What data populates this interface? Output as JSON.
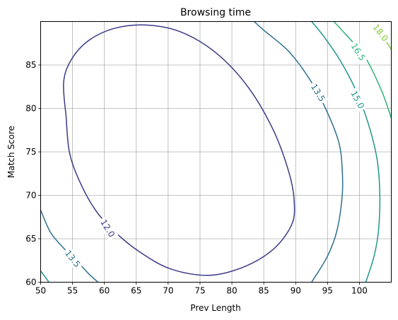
{
  "chart_data": {
    "type": "contour",
    "title": "Browsing time",
    "xlabel": "Prev Length",
    "ylabel": "Match Score",
    "xlim": [
      50,
      105
    ],
    "ylim": [
      60,
      90
    ],
    "x_ticks": [
      50,
      55,
      60,
      65,
      70,
      75,
      80,
      85,
      90,
      95,
      100
    ],
    "y_ticks": [
      60,
      65,
      70,
      75,
      80,
      85
    ],
    "grid": true,
    "legend": "none",
    "levels": [
      {
        "level": 12.0,
        "label": "12.0",
        "color": "#3b3a87",
        "paths": [
          [
            [
              54.0,
              79.0
            ],
            [
              53.6,
              83.0
            ],
            [
              54.8,
              85.6
            ],
            [
              57.5,
              87.8
            ],
            [
              61.5,
              89.2
            ],
            [
              66.5,
              89.6
            ],
            [
              72.0,
              88.8
            ],
            [
              77.5,
              86.4
            ],
            [
              82.5,
              82.5
            ],
            [
              86.5,
              77.5
            ],
            [
              89.0,
              72.5
            ],
            [
              89.8,
              69.0
            ],
            [
              89.3,
              66.5
            ],
            [
              86.5,
              63.8
            ],
            [
              82.0,
              61.8
            ],
            [
              76.5,
              60.8
            ],
            [
              70.5,
              61.5
            ],
            [
              65.5,
              63.5
            ],
            [
              61.5,
              65.9
            ],
            [
              58.5,
              68.4
            ],
            [
              56.0,
              71.8
            ],
            [
              54.5,
              75.0
            ],
            [
              54.0,
              79.0
            ]
          ]
        ],
        "label_at": [
          60.5,
          66.2
        ],
        "label_rotation": 58
      },
      {
        "level": 13.5,
        "label": "13.5",
        "color": "#2d6f8e",
        "paths": [
          [
            [
              50.0,
              68.3
            ],
            [
              51.5,
              65.8
            ],
            [
              53.5,
              64.0
            ],
            [
              55.5,
              62.6
            ],
            [
              57.5,
              61.0
            ],
            [
              59.0,
              60.0
            ]
          ],
          [
            [
              92.5,
              60.0
            ],
            [
              95.0,
              63.0
            ],
            [
              96.5,
              66.0
            ],
            [
              97.3,
              70.0
            ],
            [
              97.3,
              73.0
            ],
            [
              96.8,
              76.0
            ],
            [
              95.0,
              79.5
            ],
            [
              92.5,
              83.0
            ],
            [
              89.0,
              86.5
            ],
            [
              85.0,
              89.0
            ],
            [
              83.5,
              90.0
            ]
          ]
        ],
        "label_at": [
          [
            55.0,
            62.7
          ],
          [
            93.5,
            81.8
          ]
        ],
        "label_rotation": [
          52,
          58
        ]
      },
      {
        "level": 15.0,
        "label": "15.0",
        "color": "#22968b",
        "paths": [
          [
            [
              50.0,
              61.3
            ],
            [
              51.3,
              60.0
            ]
          ],
          [
            [
              101.0,
              60.0
            ],
            [
              102.3,
              63.0
            ],
            [
              103.0,
              66.0
            ],
            [
              103.2,
              70.0
            ],
            [
              102.8,
              74.0
            ],
            [
              101.5,
              78.0
            ],
            [
              99.5,
              82.0
            ],
            [
              97.0,
              85.5
            ],
            [
              94.5,
              88.2
            ],
            [
              92.5,
              90.0
            ]
          ]
        ],
        "label_at": [
          99.7,
          81.0
        ],
        "label_rotation": 62
      },
      {
        "level": 16.5,
        "label": "16.5",
        "color": "#2fb47c",
        "paths": [
          [
            [
              105.0,
              78.9
            ],
            [
              103.5,
              82.0
            ],
            [
              101.0,
              85.8
            ],
            [
              99.0,
              87.6
            ],
            [
              97.5,
              88.8
            ],
            [
              96.0,
              90.0
            ]
          ]
        ],
        "label_at": [
          99.8,
          86.5
        ],
        "label_rotation": 58
      },
      {
        "level": 18.0,
        "label": "18.0",
        "color": "#83c93a",
        "paths": [
          [
            [
              105.0,
              86.8
            ],
            [
              103.8,
              88.2
            ],
            [
              102.5,
              90.0
            ]
          ]
        ],
        "label_at": [
          103.3,
          88.7
        ],
        "label_rotation": 52
      }
    ]
  }
}
